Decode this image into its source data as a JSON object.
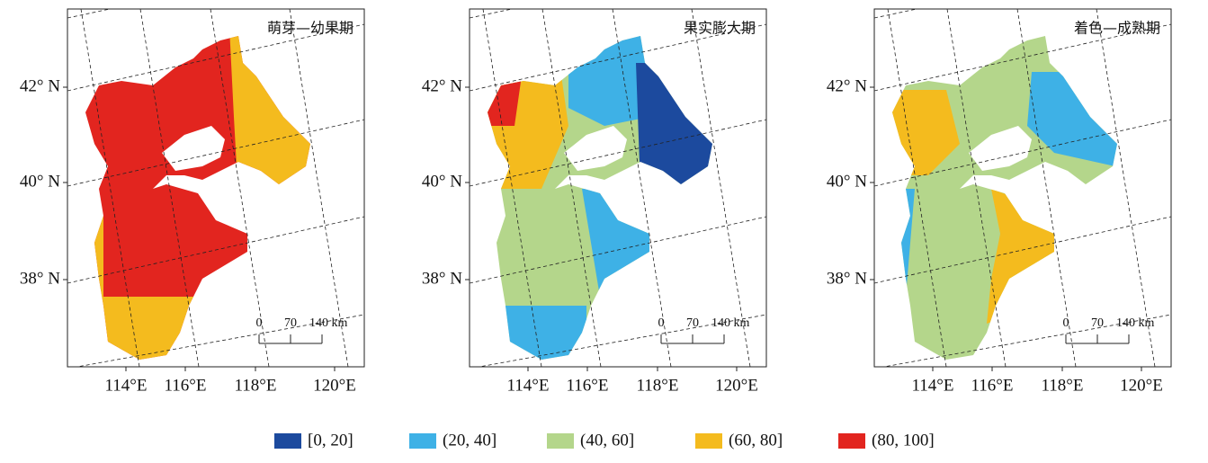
{
  "panels": [
    {
      "title": "萌芽—幼果期"
    },
    {
      "title": "果实膨大期"
    },
    {
      "title": "着色—成熟期"
    }
  ],
  "lat_labels": [
    "42° N",
    "40° N",
    "38° N"
  ],
  "lon_labels": [
    "114°E",
    "116°E",
    "118°E",
    "120°E"
  ],
  "scale_labels": [
    "0",
    "70",
    "140 km"
  ],
  "legend": [
    {
      "label": "[0, 20]",
      "color": "#1c4a9e"
    },
    {
      "label": "(20, 40]",
      "color": "#3eb1e6"
    },
    {
      "label": "(40, 60]",
      "color": "#b4d68b"
    },
    {
      "label": "(60, 80]",
      "color": "#f4bb1e"
    },
    {
      "label": "(80, 100]",
      "color": "#e2251f"
    }
  ]
}
